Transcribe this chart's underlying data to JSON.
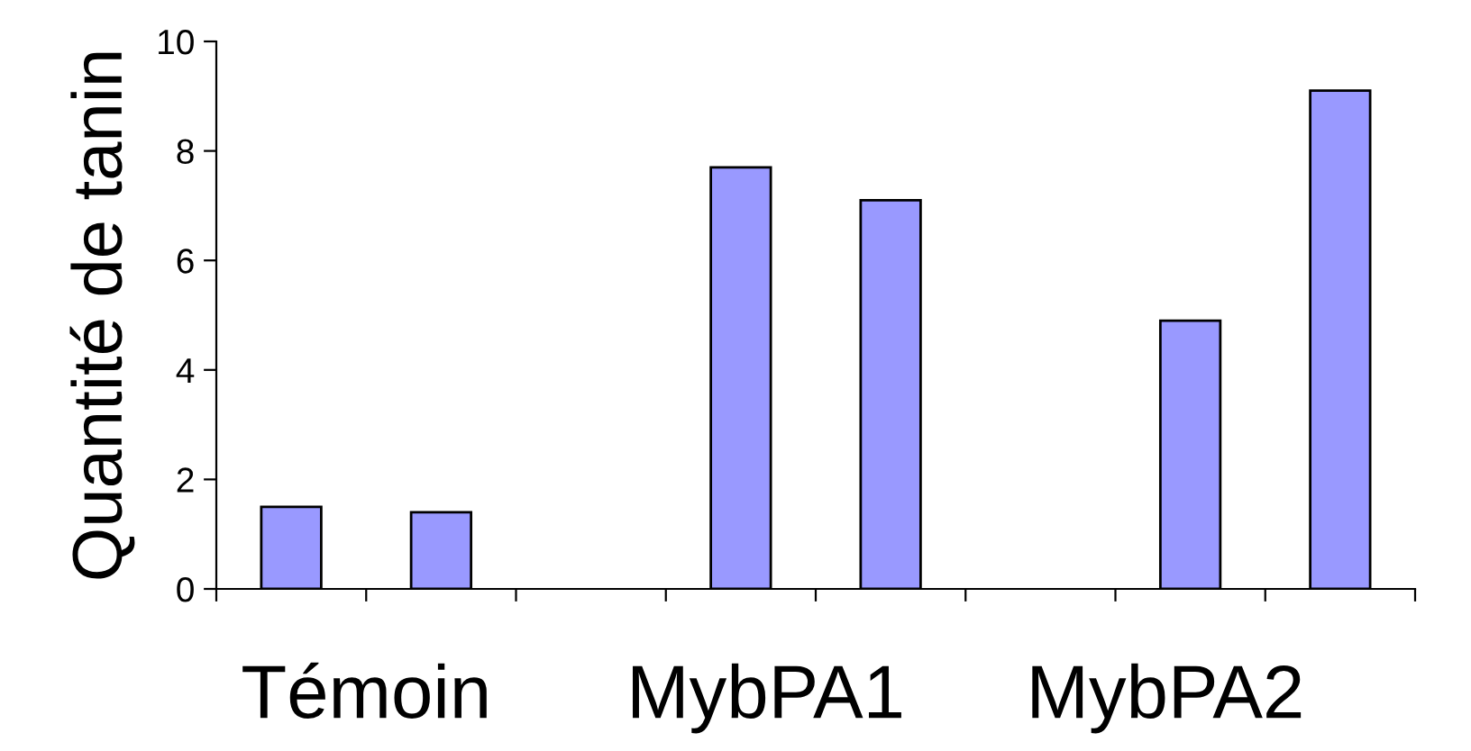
{
  "chart_data": {
    "type": "bar",
    "ylabel": "Quantité de tanin",
    "categories": [
      null,
      null,
      null,
      null,
      null,
      null,
      null,
      null
    ],
    "values": [
      1.5,
      1.4,
      null,
      7.7,
      7.1,
      null,
      4.9,
      9.1
    ],
    "color": "#9999ff",
    "ylim": [
      0,
      10
    ],
    "yticks": [
      0,
      2,
      4,
      6,
      8,
      10
    ],
    "grid": false,
    "annotations": [
      "Témoin",
      "MybPA1",
      "MybPA2"
    ]
  }
}
